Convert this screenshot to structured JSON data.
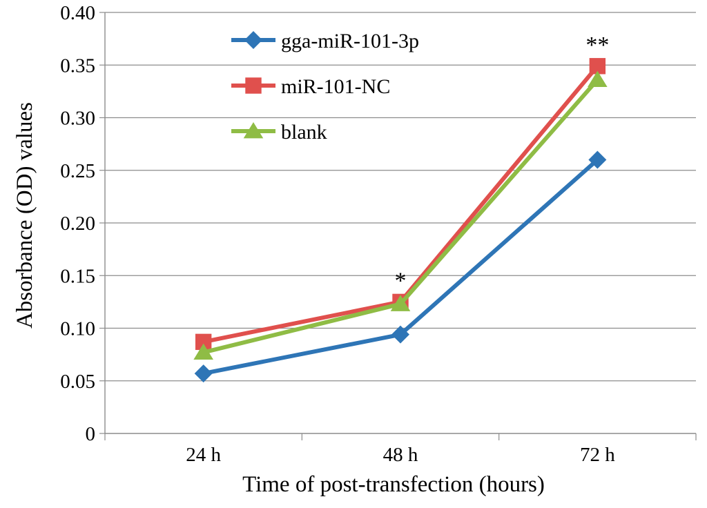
{
  "chart_data": {
    "type": "line",
    "categories": [
      "24 h",
      "48 h",
      "72 h"
    ],
    "series": [
      {
        "name": "gga-miR-101-3p",
        "values": [
          0.057,
          0.094,
          0.26
        ],
        "color": "#2e75b6",
        "marker": "diamond"
      },
      {
        "name": "miR-101-NC",
        "values": [
          0.087,
          0.125,
          0.349
        ],
        "color": "#e0504d",
        "marker": "square"
      },
      {
        "name": "blank",
        "values": [
          0.077,
          0.123,
          0.336
        ],
        "color": "#8fbc45",
        "marker": "triangle"
      }
    ],
    "xlabel": "Time  of post-transfection (hours)",
    "ylabel": "Absorbance (OD) values",
    "ylim": [
      0,
      0.4
    ],
    "yticks": [
      "0",
      "0.05",
      "0.10",
      "0.15",
      "0.20",
      "0.25",
      "0.30",
      "0.35",
      "0.40"
    ],
    "grid": true,
    "legend_position": "top-left",
    "annotations": [
      {
        "text": "*",
        "category": "48 h"
      },
      {
        "text": "**",
        "category": "72 h"
      }
    ]
  }
}
